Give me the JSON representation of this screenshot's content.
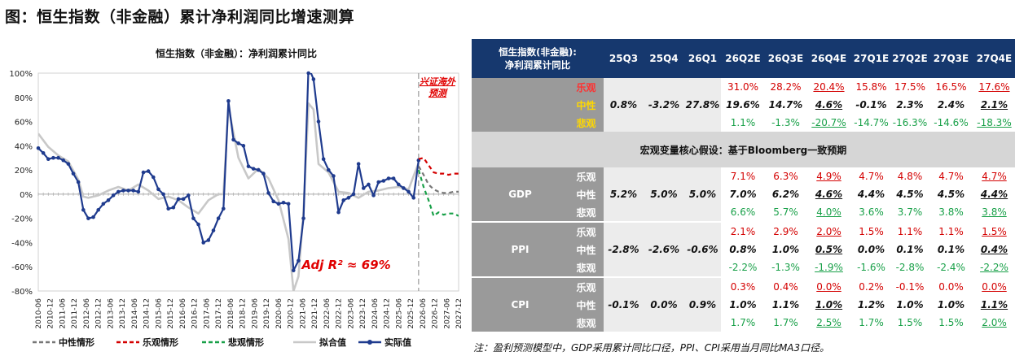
{
  "page_title": "图：恒生指数（非金融）累计净利润同比增速测算",
  "chart_data": {
    "type": "line",
    "title": "恒生指数（非金融）：净利润累计同比",
    "ylim": [
      -80,
      100
    ],
    "yticks": [
      "100%",
      "80%",
      "60%",
      "40%",
      "20%",
      "0%",
      "-20%",
      "-40%",
      "-60%",
      "-80%"
    ],
    "x": [
      "2010-06",
      "2010-12",
      "2011-06",
      "2011-12",
      "2012-06",
      "2012-12",
      "2013-06",
      "2013-12",
      "2014-06",
      "2014-12",
      "2015-06",
      "2015-12",
      "2016-06",
      "2016-12",
      "2017-06",
      "2017-12",
      "2018-06",
      "2018-12",
      "2019-06",
      "2019-12",
      "2020-06",
      "2020-12",
      "2021-06",
      "2021-12",
      "2022-06",
      "2022-12",
      "2023-06",
      "2023-12",
      "2024-06",
      "2024-12",
      "2025-06",
      "2025-12",
      "2026-06",
      "2026-12",
      "2027-06",
      "2027-12"
    ],
    "forecast_label": "兴证海外预测",
    "annotation": "Adj R² ≈ 69%",
    "series": [
      {
        "name": "实际值",
        "color": "#1f3b8e",
        "points": [
          [
            0,
            38
          ],
          [
            0.5,
            34
          ],
          [
            1,
            29
          ],
          [
            1.5,
            30
          ],
          [
            2,
            30
          ],
          [
            2.5,
            28
          ],
          [
            3,
            25
          ],
          [
            3.5,
            17
          ],
          [
            4,
            10
          ],
          [
            4.5,
            -13
          ],
          [
            5,
            -20
          ],
          [
            5.5,
            -19
          ],
          [
            6,
            -13
          ],
          [
            6.5,
            -8
          ],
          [
            7,
            -5
          ],
          [
            7.5,
            -1
          ],
          [
            8,
            2
          ],
          [
            8.5,
            3
          ],
          [
            9,
            3
          ],
          [
            9.5,
            3
          ],
          [
            10,
            2
          ],
          [
            10.5,
            18
          ],
          [
            11,
            19
          ],
          [
            11.5,
            14
          ],
          [
            12,
            4
          ],
          [
            12.5,
            0
          ],
          [
            13,
            -12
          ],
          [
            13.5,
            -11
          ],
          [
            14,
            -4
          ],
          [
            14.5,
            -4
          ],
          [
            15,
            -1
          ],
          [
            15.5,
            -20
          ],
          [
            16,
            -25
          ],
          [
            16.5,
            -40
          ],
          [
            17,
            -38
          ],
          [
            17.5,
            -30
          ],
          [
            18,
            -20
          ],
          [
            18.5,
            -12
          ],
          [
            19,
            77
          ],
          [
            19.5,
            45
          ],
          [
            20,
            42
          ],
          [
            20.5,
            40
          ],
          [
            21,
            23
          ],
          [
            21.5,
            21
          ],
          [
            22,
            20
          ],
          [
            22.5,
            17
          ],
          [
            23,
            1
          ],
          [
            23.5,
            -6
          ],
          [
            24,
            -8
          ],
          [
            24.5,
            -7
          ],
          [
            25,
            -8
          ],
          [
            25.5,
            -63
          ],
          [
            26,
            -55
          ],
          [
            26.5,
            -20
          ],
          [
            27,
            105
          ],
          [
            27.5,
            95
          ],
          [
            28,
            60
          ],
          [
            28.5,
            29
          ],
          [
            29,
            20
          ],
          [
            29.5,
            15
          ],
          [
            30,
            -15
          ],
          [
            30.5,
            -5
          ],
          [
            31,
            -3
          ],
          [
            31.5,
            0
          ],
          [
            32,
            25
          ],
          [
            32.5,
            5
          ],
          [
            33,
            8
          ],
          [
            33.5,
            -1
          ],
          [
            34,
            10
          ],
          [
            34.5,
            11
          ],
          [
            35,
            13
          ],
          [
            35.5,
            13
          ],
          [
            36,
            8
          ],
          [
            36.5,
            5
          ],
          [
            37,
            2
          ],
          [
            37.5,
            -3
          ],
          [
            38,
            28
          ]
        ]
      },
      {
        "name": "拟合值",
        "color": "#c8c8c8",
        "points": [
          [
            0,
            50
          ],
          [
            1,
            39
          ],
          [
            2,
            32
          ],
          [
            3,
            27
          ],
          [
            4,
            12
          ],
          [
            4.5,
            -2
          ],
          [
            5,
            -3
          ],
          [
            6,
            -1
          ],
          [
            7,
            3
          ],
          [
            8,
            6
          ],
          [
            9,
            3
          ],
          [
            10,
            8
          ],
          [
            11,
            3
          ],
          [
            12,
            -4
          ],
          [
            13,
            -2
          ],
          [
            14,
            -5
          ],
          [
            15,
            -11
          ],
          [
            16,
            -16
          ],
          [
            17,
            -5
          ],
          [
            18,
            0
          ],
          [
            18.5,
            0
          ],
          [
            19,
            72
          ],
          [
            20,
            30
          ],
          [
            21,
            13
          ],
          [
            22,
            21
          ],
          [
            23,
            13
          ],
          [
            24,
            -5
          ],
          [
            25,
            -37
          ],
          [
            25.5,
            -80
          ],
          [
            26,
            -68
          ],
          [
            26.5,
            -14
          ],
          [
            27,
            75
          ],
          [
            27.5,
            70
          ],
          [
            28,
            25
          ],
          [
            29,
            18
          ],
          [
            30,
            2
          ],
          [
            31,
            1
          ],
          [
            32,
            -3
          ],
          [
            33,
            2
          ],
          [
            34,
            3
          ],
          [
            35,
            5
          ],
          [
            36,
            6
          ],
          [
            37,
            4
          ],
          [
            38,
            26
          ]
        ]
      },
      {
        "name": "中性情形",
        "color": "#777777",
        "dashed": true,
        "points": [
          [
            38,
            23
          ],
          [
            38.5,
            16
          ],
          [
            39,
            8
          ],
          [
            39.5,
            4
          ],
          [
            40,
            2
          ],
          [
            40.5,
            1
          ],
          [
            41,
            1
          ],
          [
            41.5,
            2
          ],
          [
            42,
            2
          ]
        ]
      },
      {
        "name": "乐观情形",
        "color": "#d40000",
        "dashed": true,
        "points": [
          [
            38,
            29
          ],
          [
            38.5,
            30
          ],
          [
            39,
            24
          ],
          [
            39.5,
            18
          ],
          [
            40,
            17
          ],
          [
            40.5,
            17
          ],
          [
            41,
            16
          ],
          [
            41.5,
            17
          ],
          [
            42,
            17
          ]
        ]
      },
      {
        "name": "悲观情形",
        "color": "#18a048",
        "dashed": true,
        "points": [
          [
            38,
            20
          ],
          [
            38.5,
            6
          ],
          [
            39,
            -5
          ],
          [
            39.5,
            -18
          ],
          [
            40,
            -15
          ],
          [
            40.5,
            -17
          ],
          [
            41,
            -16
          ],
          [
            41.5,
            -16
          ],
          [
            42,
            -18
          ]
        ]
      }
    ]
  },
  "table": {
    "corner": [
      "恒生指数(非金融):",
      "净利润累计同比"
    ],
    "columns": [
      "25Q3",
      "25Q4",
      "26Q1",
      "26Q2E",
      "26Q3E",
      "26Q4E",
      "27Q1E",
      "27Q2E",
      "27Q3E",
      "27Q4E"
    ],
    "scenario_labels": [
      "乐观",
      "中性",
      "悲观"
    ],
    "profit": {
      "hist": [
        "0.8%",
        "-3.2%",
        "27.8%"
      ],
      "optimistic": [
        "31.0%",
        "28.2%",
        "20.4%",
        "15.8%",
        "17.5%",
        "16.5%",
        "17.6%"
      ],
      "neutral": [
        "19.6%",
        "14.7%",
        "4.6%",
        "-0.1%",
        "2.3%",
        "2.4%",
        "2.1%"
      ],
      "pessimistic": [
        "1.1%",
        "-1.3%",
        "-20.7%",
        "-14.7%",
        "-16.3%",
        "-14.6%",
        "-18.3%"
      ]
    },
    "banner": "宏观变量核心假设：基于Bloomberg一致预期",
    "groups": [
      {
        "label": "GDP",
        "hist": [
          "5.2%",
          "5.0%",
          "5.0%"
        ],
        "optimistic": [
          "7.1%",
          "6.3%",
          "4.9%",
          "4.7%",
          "4.8%",
          "4.7%",
          "4.7%"
        ],
        "neutral": [
          "7.0%",
          "6.2%",
          "4.6%",
          "4.4%",
          "4.5%",
          "4.5%",
          "4.4%"
        ],
        "pessimistic": [
          "6.6%",
          "5.7%",
          "4.0%",
          "3.6%",
          "3.7%",
          "3.8%",
          "3.8%"
        ]
      },
      {
        "label": "PPI",
        "hist": [
          "-2.8%",
          "-2.6%",
          "-0.6%"
        ],
        "optimistic": [
          "2.1%",
          "2.9%",
          "2.0%",
          "1.5%",
          "1.1%",
          "1.1%",
          "1.5%"
        ],
        "neutral": [
          "0.8%",
          "1.0%",
          "0.5%",
          "0.0%",
          "0.1%",
          "0.1%",
          "0.4%"
        ],
        "pessimistic": [
          "-2.2%",
          "-1.3%",
          "-1.9%",
          "-1.6%",
          "-2.8%",
          "-2.4%",
          "-2.2%"
        ]
      },
      {
        "label": "CPI",
        "hist": [
          "-0.1%",
          "0.0%",
          "0.9%"
        ],
        "optimistic": [
          "0.3%",
          "0.4%",
          "0.0%",
          "0.2%",
          "-0.1%",
          "0.0%",
          "0.0%"
        ],
        "neutral": [
          "1.0%",
          "1.1%",
          "1.0%",
          "1.2%",
          "1.0%",
          "1.0%",
          "1.1%"
        ],
        "pessimistic": [
          "1.7%",
          "1.7%",
          "2.5%",
          "1.7%",
          "1.5%",
          "1.5%",
          "2.0%"
        ]
      }
    ]
  },
  "note": "注：盈利预测模型中，GDP采用累计同比口径，PPI、CPI采用当月同比MA3口径。"
}
